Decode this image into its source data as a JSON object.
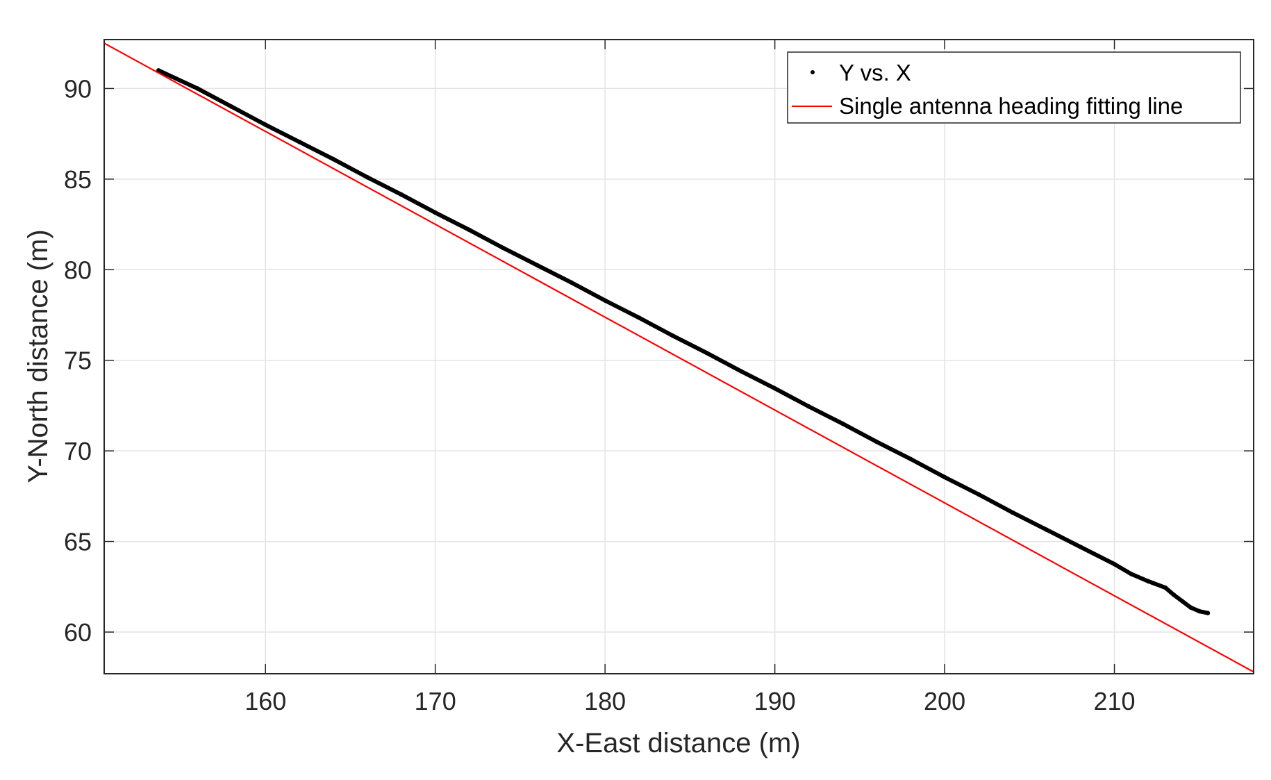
{
  "chart_data": {
    "type": "line",
    "xlabel": "X-East distance (m)",
    "ylabel": "Y-North distance (m)",
    "xlim": [
      150.5,
      218.2
    ],
    "ylim": [
      57.7,
      92.7
    ],
    "xticks": [
      160,
      170,
      180,
      190,
      200,
      210
    ],
    "yticks": [
      60,
      65,
      70,
      75,
      80,
      85,
      90
    ],
    "grid": true,
    "legend_position": "top-right",
    "series": [
      {
        "name": "Y vs. X",
        "style": "dots",
        "color": "#000000",
        "x": [
          153.7,
          156,
          158,
          160,
          162,
          164,
          166,
          168,
          170,
          172,
          174,
          176,
          178,
          180,
          182,
          184,
          186,
          188,
          190,
          192,
          194,
          196,
          198,
          200,
          202,
          204,
          206,
          208,
          210,
          211,
          212,
          213,
          213.5,
          214,
          214.5,
          215,
          215.5
        ],
        "y": [
          91.0,
          90.0,
          89.0,
          88.0,
          87.05,
          86.1,
          85.1,
          84.15,
          83.15,
          82.2,
          81.2,
          80.25,
          79.3,
          78.3,
          77.35,
          76.35,
          75.4,
          74.4,
          73.45,
          72.45,
          71.5,
          70.5,
          69.55,
          68.55,
          67.6,
          66.6,
          65.65,
          64.7,
          63.75,
          63.2,
          62.8,
          62.45,
          62.05,
          61.7,
          61.35,
          61.15,
          61.05
        ]
      },
      {
        "name": "Single antenna heading fitting line",
        "style": "line",
        "color": "#ff0000",
        "x": [
          150.5,
          218.2
        ],
        "y": [
          92.5,
          57.8
        ]
      }
    ]
  }
}
